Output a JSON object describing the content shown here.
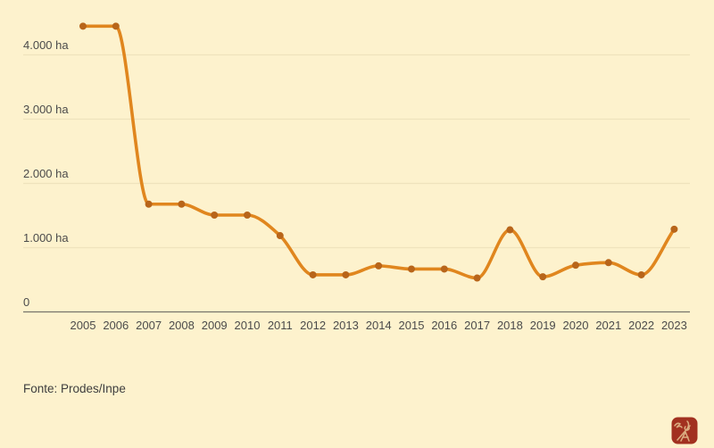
{
  "canvas": {
    "background": "#fdf2cd"
  },
  "chart_data": {
    "type": "line",
    "title": "",
    "xlabel": "",
    "ylabel": "",
    "unit": "ha",
    "categories": [
      "2005",
      "2006",
      "2007",
      "2008",
      "2009",
      "2010",
      "2011",
      "2012",
      "2013",
      "2014",
      "2015",
      "2016",
      "2017",
      "2018",
      "2019",
      "2020",
      "2021",
      "2022",
      "2023"
    ],
    "values": [
      4440,
      4440,
      1670,
      1670,
      1500,
      1500,
      1180,
      570,
      570,
      710,
      660,
      660,
      520,
      1270,
      540,
      720,
      760,
      570,
      1280
    ],
    "ylim": [
      0,
      4500
    ],
    "y_ticks": [
      {
        "value": 0,
        "label": "0"
      },
      {
        "value": 1000,
        "label": "1.000 ha"
      },
      {
        "value": 2000,
        "label": "2.000 ha"
      },
      {
        "value": 3000,
        "label": "3.000 ha"
      },
      {
        "value": 4000,
        "label": "4.000 ha"
      }
    ],
    "grid": true,
    "legend_position": "none",
    "smoothing": "monotone",
    "line_color": "#e0861e",
    "marker_color": "#b8651a",
    "grid_color": "#efe3bd",
    "axis_color": "#76756c",
    "label_color": "#4b4b4b"
  },
  "footer": {
    "source_label": "Fonte: Prodes/Inpe"
  },
  "logo": {
    "background": "#a23120",
    "ink": "#e6c392"
  }
}
